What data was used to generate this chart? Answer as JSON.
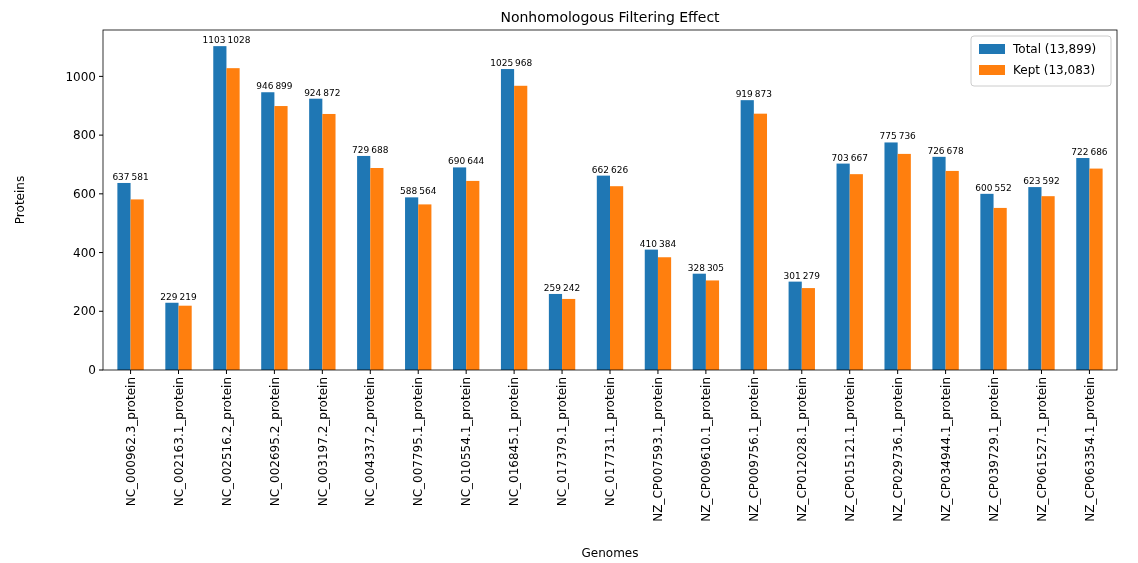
{
  "chart_data": {
    "type": "bar",
    "title": "Nonhomologous Filtering Effect",
    "xlabel": "Genomes",
    "ylabel": "Proteins",
    "categories": [
      "NC_000962.3_protein",
      "NC_002163.1_protein",
      "NC_002516.2_protein",
      "NC_002695.2_protein",
      "NC_003197.2_protein",
      "NC_004337.2_protein",
      "NC_007795.1_protein",
      "NC_010554.1_protein",
      "NC_016845.1_protein",
      "NC_017379.1_protein",
      "NC_017731.1_protein",
      "NZ_CP007593.1_protein",
      "NZ_CP009610.1_protein",
      "NZ_CP009756.1_protein",
      "NZ_CP012028.1_protein",
      "NZ_CP015121.1_protein",
      "NZ_CP029736.1_protein",
      "NZ_CP034944.1_protein",
      "NZ_CP039729.1_protein",
      "NZ_CP061527.1_protein",
      "NZ_CP063354.1_protein"
    ],
    "series": [
      {
        "name": "Total (13,899)",
        "color": "#1f77b4",
        "values": [
          637,
          229,
          1103,
          946,
          924,
          729,
          588,
          690,
          1025,
          259,
          662,
          410,
          328,
          919,
          301,
          703,
          775,
          726,
          600,
          623,
          722
        ]
      },
      {
        "name": "Kept (13,083)",
        "color": "#ff7f0e",
        "values": [
          581,
          219,
          1028,
          899,
          872,
          688,
          564,
          644,
          968,
          242,
          626,
          384,
          305,
          873,
          279,
          667,
          736,
          678,
          552,
          592,
          686
        ]
      }
    ],
    "ylim": [
      0,
      1158
    ],
    "yticks": [
      0,
      200,
      400,
      600,
      800,
      1000
    ],
    "data_labels": true,
    "legend": "top right"
  }
}
